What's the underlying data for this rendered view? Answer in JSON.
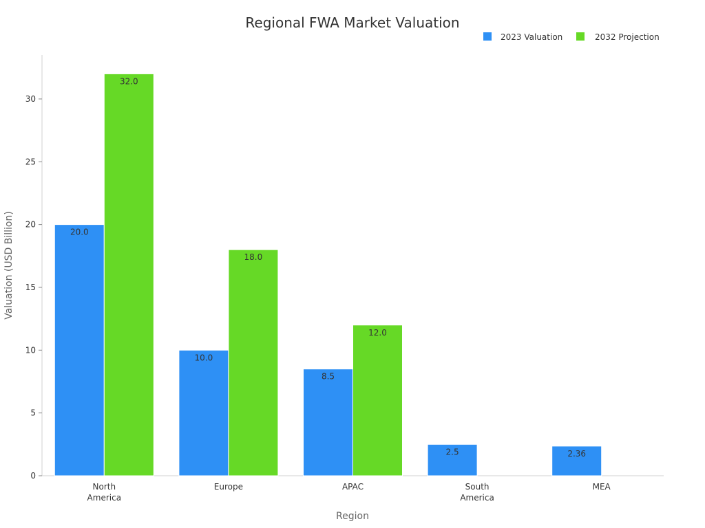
{
  "chart_data": {
    "type": "bar",
    "title": "Regional FWA Market Valuation",
    "xlabel": "Region",
    "ylabel": "Valuation (USD Billion)",
    "categories": [
      [
        "North",
        "America"
      ],
      [
        "Europe"
      ],
      [
        "APAC"
      ],
      [
        "South",
        "America"
      ],
      [
        "MEA"
      ]
    ],
    "series": [
      {
        "name": "2023 Valuation",
        "color": "#2e90f5",
        "values": [
          20.0,
          10.0,
          8.5,
          2.5,
          2.36
        ],
        "labels": [
          "20.0",
          "10.0",
          "8.5",
          "2.5",
          "2.36"
        ]
      },
      {
        "name": "2032 Projection",
        "color": "#66d926",
        "values": [
          32.0,
          18.0,
          12.0,
          null,
          null
        ],
        "labels": [
          "32.0",
          "18.0",
          "12.0",
          "",
          ""
        ]
      }
    ],
    "ylim": [
      0,
      33.5
    ],
    "yticks": [
      0,
      5,
      10,
      15,
      20,
      25,
      30
    ],
    "grid": false,
    "legend_position": "top-right"
  }
}
